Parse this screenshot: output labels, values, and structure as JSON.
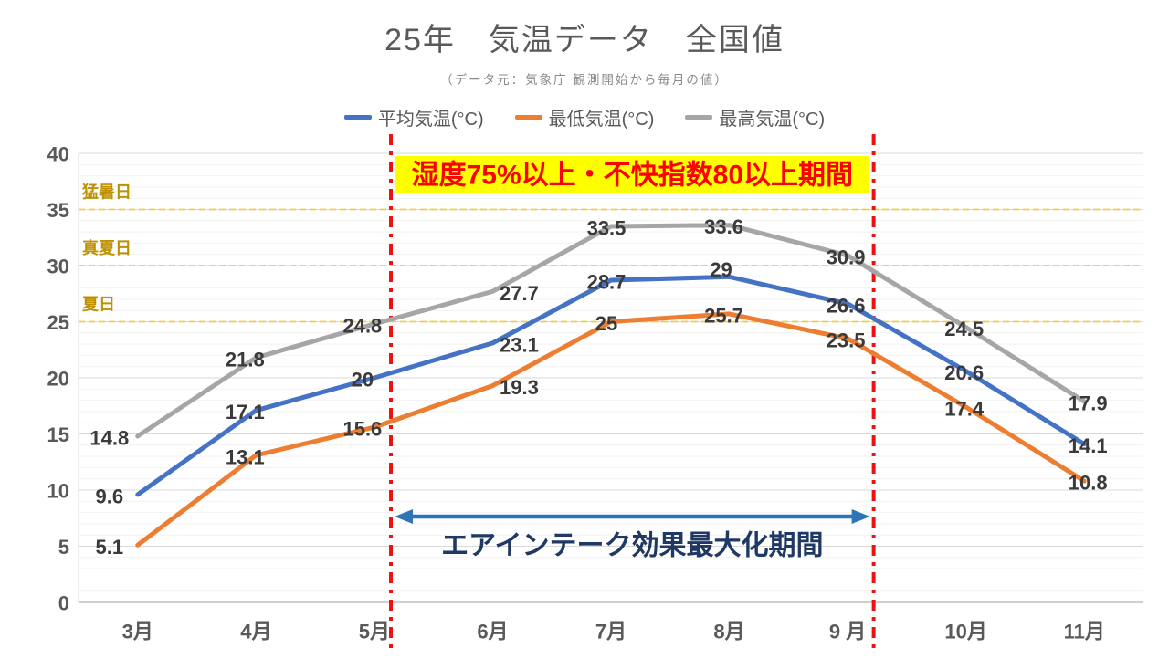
{
  "header": {
    "title": "25年　気温データ　全国値",
    "subtitle": "（データ元：気象庁 観測開始から毎月の値）"
  },
  "legend": {
    "items": [
      {
        "label": "平均気温(°C)",
        "color": "#4472C4"
      },
      {
        "label": "最低気温(°C)",
        "color": "#ED7D31"
      },
      {
        "label": "最高気温(°C)",
        "color": "#A6A6A6"
      }
    ]
  },
  "chart_data": {
    "type": "line",
    "categories": [
      "3月",
      "4月",
      "5月",
      "6月",
      "7月",
      "8月",
      "9 月",
      "10月",
      "11月"
    ],
    "series": [
      {
        "name": "平均気温(°C)",
        "color": "#4472C4",
        "values": [
          9.6,
          17.1,
          20,
          23.1,
          28.7,
          29,
          26.6,
          20.6,
          14.1
        ]
      },
      {
        "name": "最低気温(°C)",
        "color": "#ED7D31",
        "values": [
          5.1,
          13.1,
          15.6,
          19.3,
          25,
          25.7,
          23.5,
          17.4,
          10.8
        ]
      },
      {
        "name": "最高気温(°C)",
        "color": "#A6A6A6",
        "values": [
          14.8,
          21.8,
          24.8,
          27.7,
          33.5,
          33.6,
          30.9,
          24.5,
          17.9
        ]
      }
    ],
    "title": "25年　気温データ　全国値",
    "xlabel": "",
    "ylabel": "",
    "ylim": [
      0,
      40
    ],
    "y_major_step": 5,
    "y_minor_step": 1,
    "grid": true,
    "legend_position": "top",
    "data_labels": true,
    "thresholds": [
      {
        "value": 35,
        "label": "猛暑日"
      },
      {
        "value": 30,
        "label": "真夏日"
      },
      {
        "value": 25,
        "label": "夏日"
      }
    ],
    "threshold_line_color": "#EFCB4F",
    "threshold_label_color": "#BF9000",
    "highlight_period": {
      "from_index": 2.64,
      "to_index": 6.72,
      "marker_line_color": "#EE1111",
      "banner_text": "湿度75%以上・不快指数80以上期間",
      "banner_bg": "#FFFF00",
      "banner_text_color": "#FF0000",
      "arrow_text": "エアインテーク効果最大化期間",
      "arrow_color": "#2E75B6",
      "arrow_text_color": "#1F3864"
    },
    "axis_text_color": "#595959",
    "data_label_color": "#3A3A3A",
    "gridline_major_color": "#D9D9D9",
    "gridline_minor_color": "#F2F2F2",
    "axis_line_color": "#BFBFBF"
  }
}
